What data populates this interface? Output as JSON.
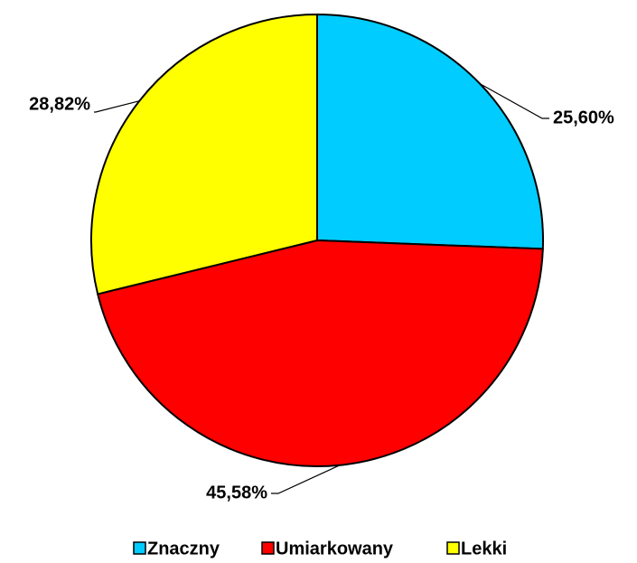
{
  "chart_data": {
    "type": "pie",
    "categories": [
      "Znaczny",
      "Umiarkowany",
      "Lekki"
    ],
    "values": [
      25.6,
      45.58,
      28.82
    ],
    "value_labels": [
      "25,60%",
      "45,58%",
      "28,82%"
    ],
    "colors": [
      "#00ccff",
      "#ff0000",
      "#ffff00"
    ],
    "legend": "bottom"
  }
}
